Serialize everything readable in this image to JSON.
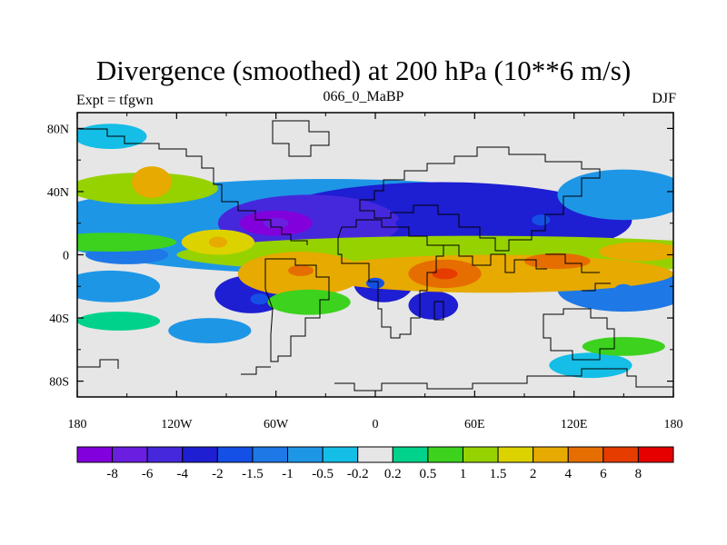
{
  "header": {
    "title": "Divergence (smoothed) at 200 hPa (10**6 m/s)",
    "left_label": "Expt = tfgwn",
    "center_label": "066_0_MaBP",
    "right_label": "DJF"
  },
  "chart_data": {
    "type": "heatmap",
    "title": "Divergence (smoothed) at 200 hPa (10**6 m/s)",
    "x_ticks": [
      "180",
      "120W",
      "60W",
      "0",
      "60E",
      "120E",
      "180"
    ],
    "y_ticks": [
      "80N",
      "40N",
      "0",
      "40S",
      "80S"
    ],
    "xlim": [
      -180,
      180
    ],
    "ylim": [
      -90,
      90
    ],
    "colorbar": {
      "labels": [
        "-8",
        "-6",
        "-4",
        "-2",
        "-1.5",
        "-1",
        "-0.5",
        "-0.2",
        "0.2",
        "0.5",
        "1",
        "1.5",
        "2",
        "4",
        "6",
        "8"
      ],
      "colors": [
        "#8200dc",
        "#6a1ee0",
        "#4628dc",
        "#1e1ed2",
        "#1450e6",
        "#1e78e6",
        "#1e96e6",
        "#14bee6",
        "#e6e6e6",
        "#00d28c",
        "#3cd21e",
        "#96d200",
        "#dcd200",
        "#e6aa00",
        "#e66e00",
        "#e63c00",
        "#e60000"
      ]
    },
    "features": [
      {
        "type": "convergence",
        "lon": -60,
        "lat": 20,
        "value": -8
      },
      {
        "type": "convergence",
        "lon": 20,
        "lat": 20,
        "value": -4
      },
      {
        "type": "convergence",
        "lon": 100,
        "lat": 22,
        "value": -2
      },
      {
        "type": "convergence",
        "lon": -70,
        "lat": -28,
        "value": -2
      },
      {
        "type": "convergence",
        "lon": 0,
        "lat": -18,
        "value": -2
      },
      {
        "type": "convergence",
        "lon": 150,
        "lat": -22,
        "value": -1.5
      },
      {
        "type": "divergence",
        "lon": -45,
        "lat": -10,
        "value": 4
      },
      {
        "type": "divergence",
        "lon": 42,
        "lat": -12,
        "value": 6
      },
      {
        "type": "divergence",
        "lon": 110,
        "lat": -5,
        "value": 4
      },
      {
        "type": "divergence",
        "lon": 165,
        "lat": 2,
        "value": 2
      },
      {
        "type": "divergence",
        "lon": -140,
        "lat": 45,
        "value": 2
      },
      {
        "type": "divergence",
        "lon": -95,
        "lat": 8,
        "value": 2
      }
    ]
  }
}
